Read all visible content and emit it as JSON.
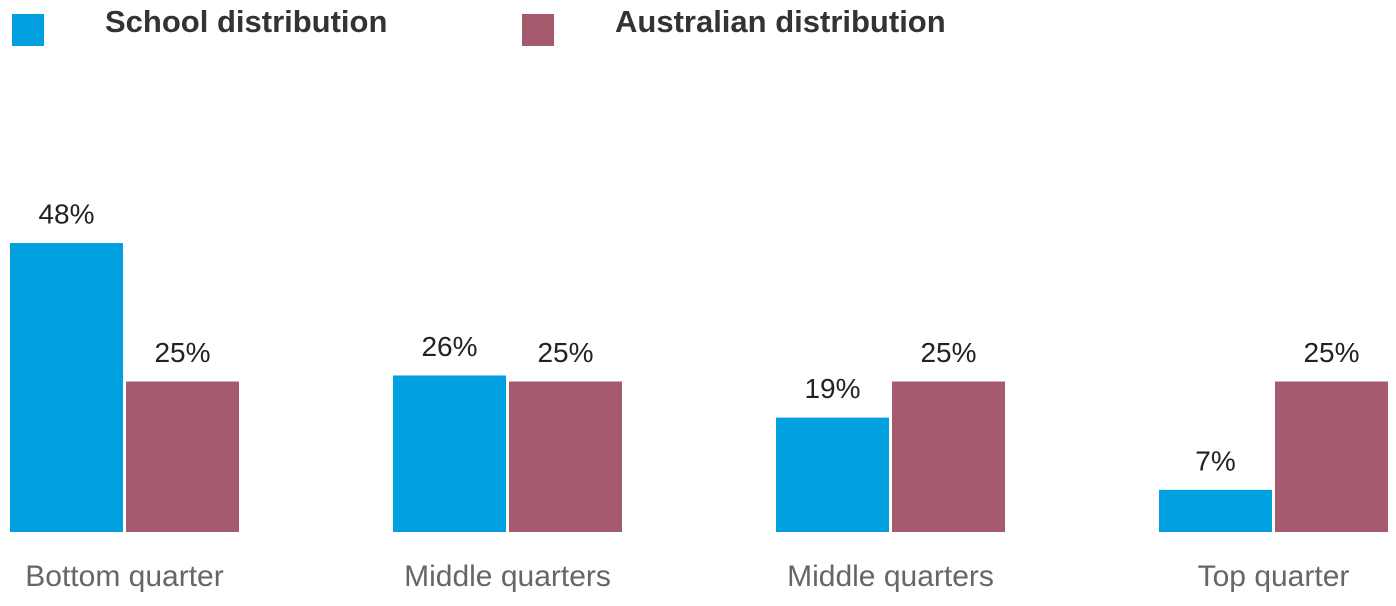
{
  "chart_data": {
    "type": "bar",
    "categories": [
      "Bottom quarter",
      "Middle quarters",
      "Middle quarters",
      "Top quarter"
    ],
    "series": [
      {
        "name": "School distribution",
        "color": "#009fe0",
        "values": [
          48,
          26,
          19,
          7
        ],
        "value_labels": [
          "48%",
          "26%",
          "19%",
          "7%"
        ]
      },
      {
        "name": "Australian distribution",
        "color": "#a35b6d",
        "values": [
          25,
          25,
          25,
          25
        ],
        "value_labels": [
          "25%",
          "25%",
          "25%",
          "25%"
        ]
      }
    ]
  }
}
